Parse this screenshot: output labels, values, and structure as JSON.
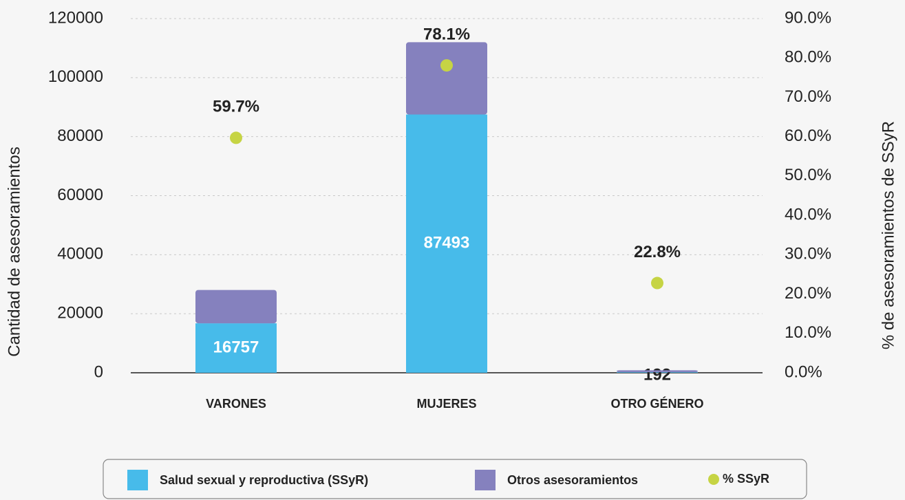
{
  "chart_data": {
    "type": "bar",
    "stacked": true,
    "categories": [
      "VARONES",
      "MUJERES",
      "OTRO GÉNERO"
    ],
    "series": [
      {
        "name": "Salud sexual y reproductiva (SSyR)",
        "color": "#47bbea",
        "values": [
          16757,
          87493,
          192
        ]
      },
      {
        "name": "Otros asesoramientos",
        "color": "#8581be",
        "values": [
          11300,
          24500,
          650
        ]
      },
      {
        "name": "% SSyR",
        "type": "scatter",
        "axis": "y2",
        "color": "#c6d444",
        "values": [
          59.7,
          78.1,
          22.8
        ],
        "value_labels": [
          "59.7%",
          "78.1%",
          "22.8%"
        ]
      }
    ],
    "ylabel": "Cantidad de asesoramientos",
    "y2label": "% de asesoramientos de SSyR",
    "ylim": [
      0,
      120000
    ],
    "yticks": [
      0,
      20000,
      40000,
      60000,
      80000,
      100000,
      120000
    ],
    "y2lim": [
      0,
      90
    ],
    "y2ticks": [
      {
        "value": 0,
        "label": "0.0%"
      },
      {
        "value": 10,
        "label": "10.0%"
      },
      {
        "value": 20,
        "label": "20.0%"
      },
      {
        "value": 30,
        "label": "30.0%"
      },
      {
        "value": 40,
        "label": "40.0%"
      },
      {
        "value": 50,
        "label": "50.0%"
      },
      {
        "value": 60,
        "label": "60.0%"
      },
      {
        "value": 70,
        "label": "70.0%"
      },
      {
        "value": 80,
        "label": "80.0%"
      },
      {
        "value": 90,
        "label": "90.0%"
      }
    ],
    "grid": true,
    "legend": "bottom"
  }
}
